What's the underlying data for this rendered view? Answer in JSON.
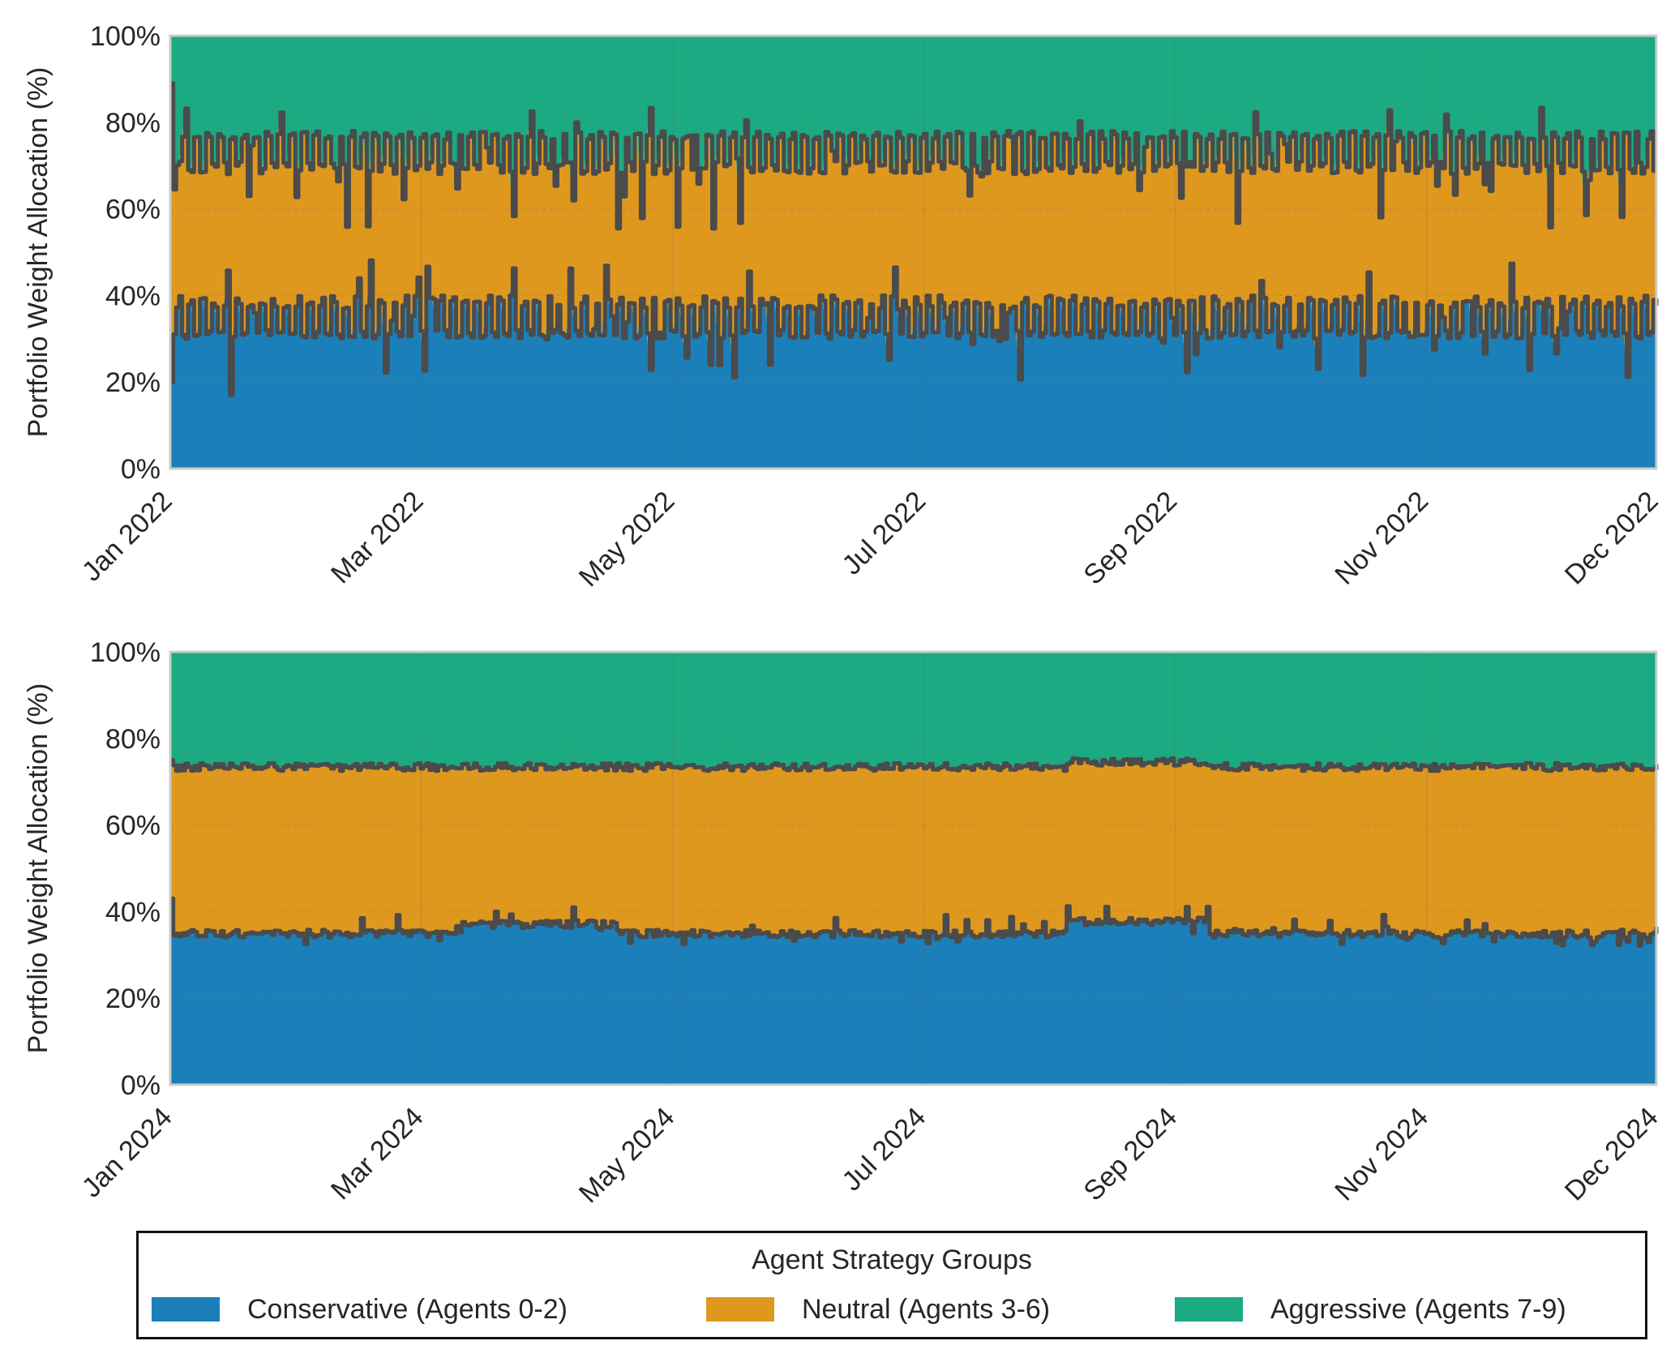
{
  "legend": {
    "title": "Agent Strategy Groups",
    "items": [
      {
        "label": "Conservative (Agents 0-2)",
        "color": "#1b80ba"
      },
      {
        "label": "Neutral (Agents 3-6)",
        "color": "#df981e"
      },
      {
        "label": "Aggressive (Agents 7-9)",
        "color": "#1caa82"
      }
    ]
  },
  "chart_data": [
    {
      "type": "area",
      "stacked": true,
      "title": "",
      "xlabel": "",
      "ylabel": "Portfolio Weight Allocation (%)",
      "ylim": [
        0,
        100
      ],
      "ytick_labels": [
        "0%",
        "20%",
        "40%",
        "60%",
        "80%",
        "100%"
      ],
      "xtick_labels": [
        "Jan 2022",
        "Mar 2022",
        "May 2022",
        "Jul 2022",
        "Sep 2022",
        "Nov 2022",
        "Dec 2022"
      ],
      "xtick_months": [
        0,
        2,
        4,
        6,
        8,
        10,
        11.83
      ],
      "grid": true,
      "series": [
        {
          "name": "Conservative (Agents 0-2)",
          "mean": 33,
          "volatility": "high",
          "low": 17,
          "high": 46
        },
        {
          "name": "Neutral (Agents 3-6)",
          "mean": 39,
          "volatility": "high"
        },
        {
          "name": "Aggressive (Agents 7-9)",
          "mean": 28,
          "volatility": "high",
          "upper_boundary_low": 58,
          "upper_boundary_high": 89
        }
      ]
    },
    {
      "type": "area",
      "stacked": true,
      "title": "",
      "xlabel": "",
      "ylabel": "Portfolio Weight Allocation (%)",
      "ylim": [
        0,
        100
      ],
      "ytick_labels": [
        "0%",
        "20%",
        "40%",
        "60%",
        "80%",
        "100%"
      ],
      "xtick_labels": [
        "Jan 2024",
        "Mar 2024",
        "May 2024",
        "Jul 2024",
        "Sep 2024",
        "Nov 2024",
        "Dec 2024"
      ],
      "xtick_months": [
        0,
        2,
        4,
        6,
        8,
        10,
        11.83
      ],
      "grid": true,
      "series": [
        {
          "name": "Conservative (Agents 0-2)",
          "mean": 35,
          "volatility": "low",
          "low": 31,
          "high": 43
        },
        {
          "name": "Neutral (Agents 3-6)",
          "mean": 38,
          "volatility": "low"
        },
        {
          "name": "Aggressive (Agents 7-9)",
          "mean": 27,
          "volatility": "low",
          "upper_boundary_low": 72,
          "upper_boundary_high": 76
        }
      ]
    }
  ]
}
